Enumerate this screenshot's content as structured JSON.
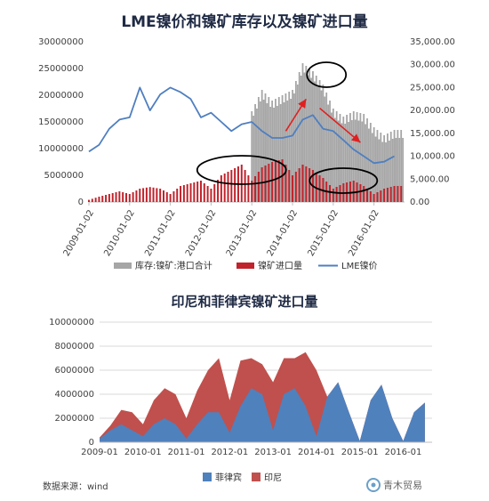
{
  "chart_data": [
    {
      "type": "bar+line",
      "title": "LME镍价和镍矿库存以及镍矿进口量",
      "x_ticks": [
        "2009-01-02",
        "2010-01-02",
        "2011-01-02",
        "2012-01-02",
        "2013-01-02",
        "2014-01-02",
        "2015-01-02",
        "2016-01-02"
      ],
      "y_left_ticks": [
        "0",
        "5000000",
        "10000000",
        "15000000",
        "20000000",
        "25000000",
        "30000000"
      ],
      "y_left_lim": [
        0,
        30000000
      ],
      "y_right_ticks": [
        "0.00",
        "5,000.00",
        "10,000.00",
        "15,000.00",
        "20,000.00",
        "25,000.00",
        "30,000.00",
        "35,000.00"
      ],
      "y_right_lim": [
        0,
        35000
      ],
      "legend": [
        "库存:镍矿:港口合计",
        "镍矿进口量",
        "LME镍价"
      ],
      "colors": {
        "inventory": "#a6a6a6",
        "imports": "#c0232c",
        "price": "#4f7fc0",
        "annot": "#000000",
        "arrow": "#e02020"
      },
      "series": [
        {
          "name": "LME镍价",
          "axis": "right",
          "x": [
            "2009-01",
            "2009-04",
            "2009-07",
            "2009-10",
            "2010-01",
            "2010-04",
            "2010-07",
            "2010-10",
            "2011-01",
            "2011-04",
            "2011-07",
            "2011-10",
            "2012-01",
            "2012-04",
            "2012-07",
            "2012-10",
            "2013-01",
            "2013-04",
            "2013-07",
            "2013-10",
            "2014-01",
            "2014-04",
            "2014-07",
            "2014-10",
            "2015-01",
            "2015-04",
            "2015-07",
            "2015-10",
            "2016-01",
            "2016-04",
            "2016-07"
          ],
          "values": [
            11000,
            12500,
            16000,
            18000,
            18500,
            25000,
            20000,
            23500,
            25000,
            24000,
            22500,
            18500,
            19500,
            17500,
            15500,
            17000,
            17500,
            15500,
            14000,
            14000,
            14500,
            18000,
            19000,
            16000,
            15500,
            13500,
            11500,
            10000,
            8500,
            8800,
            10000
          ]
        },
        {
          "name": "镍矿进口量",
          "axis": "left",
          "x": [
            "2009-01",
            "2009-04",
            "2009-07",
            "2009-10",
            "2010-01",
            "2010-04",
            "2010-07",
            "2010-10",
            "2011-01",
            "2011-04",
            "2011-07",
            "2011-10",
            "2012-01",
            "2012-04",
            "2012-07",
            "2012-10",
            "2013-01",
            "2013-04",
            "2013-07",
            "2013-10",
            "2014-01",
            "2014-04",
            "2014-07",
            "2014-10",
            "2015-01",
            "2015-04",
            "2015-07",
            "2015-10",
            "2016-01",
            "2016-04",
            "2016-07"
          ],
          "values": [
            400000,
            1000000,
            1500000,
            2000000,
            1500000,
            2500000,
            2800000,
            2500000,
            1500000,
            3000000,
            3500000,
            4000000,
            2500000,
            5000000,
            6000000,
            7000000,
            4000000,
            6500000,
            7500000,
            8000000,
            5000000,
            7000000,
            6000000,
            4500000,
            2500000,
            3500000,
            4000000,
            3000000,
            1500000,
            2500000,
            3000000
          ]
        },
        {
          "name": "库存:镍矿:港口合计",
          "axis": "left",
          "x": [
            "2013-01",
            "2013-04",
            "2013-07",
            "2013-10",
            "2014-01",
            "2014-04",
            "2014-07",
            "2014-10",
            "2015-01",
            "2015-04",
            "2015-07",
            "2015-10",
            "2016-01",
            "2016-04",
            "2016-07"
          ],
          "values": [
            17000000,
            21000000,
            19000000,
            20000000,
            21000000,
            26000000,
            24500000,
            22000000,
            17500000,
            16000000,
            17000000,
            16500000,
            14000000,
            12500000,
            13500000
          ]
        }
      ]
    },
    {
      "type": "area",
      "title": "印尼和菲律宾镍矿进口量",
      "x_ticks": [
        "2009-01",
        "2010-01",
        "2011-01",
        "2012-01",
        "2013-01",
        "2014-01",
        "2015-01",
        "2016-01"
      ],
      "y_ticks": [
        "0",
        "2000000",
        "4000000",
        "6000000",
        "8000000",
        "10000000"
      ],
      "ylim": [
        0,
        10000000
      ],
      "stacked": true,
      "legend": [
        "菲律宾",
        "印尼"
      ],
      "colors": {
        "philippines": "#4f81bd",
        "indonesia": "#c0504d"
      },
      "x": [
        "2009-01",
        "2009-04",
        "2009-07",
        "2009-10",
        "2010-01",
        "2010-04",
        "2010-07",
        "2010-10",
        "2011-01",
        "2011-04",
        "2011-07",
        "2011-10",
        "2012-01",
        "2012-04",
        "2012-07",
        "2012-10",
        "2013-01",
        "2013-04",
        "2013-07",
        "2013-10",
        "2014-01",
        "2014-04",
        "2014-07",
        "2014-10",
        "2015-01",
        "2015-04",
        "2015-07",
        "2015-10",
        "2016-01",
        "2016-04",
        "2016-07"
      ],
      "series": [
        {
          "name": "菲律宾",
          "values": [
            300000,
            1000000,
            1500000,
            1000000,
            500000,
            1500000,
            2000000,
            1500000,
            300000,
            1500000,
            2500000,
            2500000,
            800000,
            3000000,
            4500000,
            4000000,
            1000000,
            4000000,
            4500000,
            3000000,
            500000,
            3800000,
            5000000,
            2500000,
            100000,
            3500000,
            4800000,
            2000000,
            100000,
            2500000,
            3300000
          ]
        },
        {
          "name": "印尼",
          "values": [
            100000,
            400000,
            1200000,
            1500000,
            1000000,
            2000000,
            2500000,
            2500000,
            1700000,
            2800000,
            3500000,
            4500000,
            2700000,
            3800000,
            2500000,
            2500000,
            4000000,
            3000000,
            2500000,
            4500000,
            5500000,
            0,
            0,
            0,
            0,
            0,
            0,
            0,
            0,
            0,
            0
          ]
        }
      ]
    }
  ],
  "source": "数据来源：wind",
  "watermark": "青木贸易"
}
